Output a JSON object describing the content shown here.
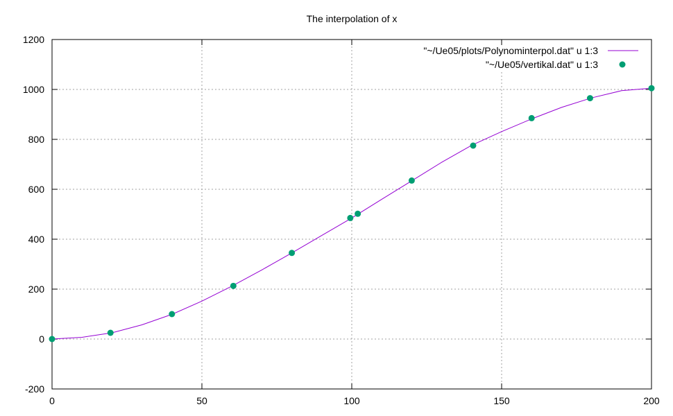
{
  "chart_data": {
    "type": "line",
    "title": "The interpolation of x",
    "xlabel": "",
    "ylabel": "",
    "xlim": [
      0,
      200
    ],
    "ylim": [
      -200,
      1200
    ],
    "xticks": [
      0,
      50,
      100,
      150,
      200
    ],
    "yticks": [
      -200,
      0,
      200,
      400,
      600,
      800,
      1000,
      1200
    ],
    "grid": true,
    "legend_position": "top-right",
    "series": [
      {
        "name": "\"~/Ue05/plots/Polynominterpol.dat\" u 1:3",
        "kind": "line",
        "color": "#9400d3",
        "x": [
          0,
          10,
          20,
          30,
          40,
          50,
          60,
          70,
          80,
          90,
          100,
          110,
          120,
          130,
          140,
          150,
          160,
          170,
          180,
          190,
          200
        ],
        "y": [
          0,
          7,
          25,
          57,
          99,
          152,
          212,
          277,
          345,
          415,
          485,
          560,
          634,
          708,
          776,
          831,
          882,
          928,
          966,
          995,
          1005
        ]
      },
      {
        "name": "\"~/Ue05/vertikal.dat\" u 1:3",
        "kind": "scatter",
        "color": "#009e73",
        "x": [
          0,
          19.5,
          40,
          60.5,
          80,
          99.5,
          102,
          120,
          140.5,
          160,
          179.5,
          200
        ],
        "y": [
          0,
          25,
          100,
          213,
          345,
          485,
          502,
          635,
          775,
          885,
          965,
          1005
        ]
      }
    ]
  }
}
